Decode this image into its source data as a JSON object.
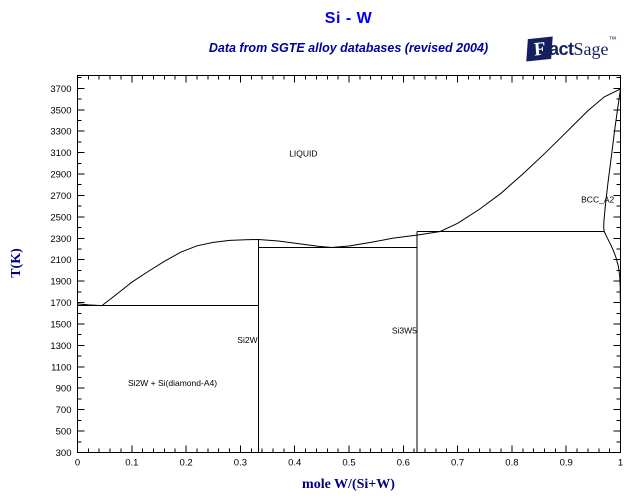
{
  "header": {
    "title": "Si - W",
    "subtitle": "Data from SGTE alloy databases (revised 2004)"
  },
  "logo": {
    "f": "F",
    "act": "act",
    "sage": "Sage",
    "tm": "™"
  },
  "colors": {
    "title": "#0000ee",
    "subtitle": "#000099",
    "axis_title": "#000080",
    "curves": "#000000",
    "logo": "#131f5e"
  },
  "chart_data": {
    "type": "line",
    "title": "Si - W",
    "subtitle": "Data from SGTE alloy databases (revised 2004)",
    "xlabel": "mole W/(Si+W)",
    "ylabel": "T(K)",
    "xlim": [
      0,
      1
    ],
    "ylim": [
      300,
      3820
    ],
    "grid": false,
    "x_major_ticks": [
      0,
      0.1,
      0.2,
      0.3,
      0.4,
      0.5,
      0.6,
      0.7,
      0.8,
      0.9,
      1
    ],
    "x_tick_labels": [
      "0",
      "0.1",
      "0.2",
      "0.3",
      "0.4",
      "0.5",
      "0.6",
      "0.7",
      "0.8",
      "0.9",
      "1"
    ],
    "x_minor_step": 0.02,
    "y_major_ticks": [
      300,
      500,
      700,
      900,
      1100,
      1300,
      1500,
      1700,
      1900,
      2100,
      2300,
      2500,
      2700,
      2900,
      3100,
      3300,
      3500,
      3700
    ],
    "y_minor_step": 100,
    "series": [
      {
        "name": "si-liquidus",
        "straight": false,
        "points": [
          [
            0,
            1687
          ],
          [
            0.02,
            1678
          ],
          [
            0.045,
            1672
          ],
          [
            0.07,
            1770
          ],
          [
            0.1,
            1890
          ],
          [
            0.13,
            1990
          ],
          [
            0.16,
            2085
          ],
          [
            0.19,
            2170
          ],
          [
            0.22,
            2230
          ],
          [
            0.25,
            2262
          ],
          [
            0.28,
            2280
          ],
          [
            0.31,
            2287
          ],
          [
            0.3333,
            2289
          ]
        ]
      },
      {
        "name": "liquidus-wsi2-to-w",
        "straight": false,
        "points": [
          [
            0.3333,
            2289
          ],
          [
            0.37,
            2275
          ],
          [
            0.41,
            2248
          ],
          [
            0.445,
            2224
          ],
          [
            0.468,
            2214
          ],
          [
            0.5,
            2228
          ],
          [
            0.54,
            2262
          ],
          [
            0.58,
            2300
          ],
          [
            0.625,
            2330
          ],
          [
            0.668,
            2363
          ],
          [
            0.7,
            2440
          ],
          [
            0.74,
            2570
          ],
          [
            0.78,
            2720
          ],
          [
            0.82,
            2900
          ],
          [
            0.86,
            3090
          ],
          [
            0.9,
            3290
          ],
          [
            0.94,
            3490
          ],
          [
            0.97,
            3620
          ],
          [
            1.0,
            3695
          ]
        ]
      },
      {
        "name": "bcc-solidus",
        "straight": false,
        "points": [
          [
            1.0,
            3695
          ],
          [
            0.995,
            3520
          ],
          [
            0.989,
            3300
          ],
          [
            0.983,
            3060
          ],
          [
            0.977,
            2820
          ],
          [
            0.972,
            2600
          ],
          [
            0.9695,
            2460
          ],
          [
            0.969,
            2400
          ],
          [
            0.97,
            2363
          ]
        ]
      },
      {
        "name": "bcc-solvus",
        "straight": false,
        "points": [
          [
            0.97,
            2363
          ],
          [
            0.975,
            2310
          ],
          [
            0.981,
            2250
          ],
          [
            0.987,
            2185
          ],
          [
            0.992,
            2115
          ],
          [
            0.996,
            2040
          ],
          [
            0.9985,
            1950
          ],
          [
            0.9995,
            1840
          ],
          [
            1.0,
            1650
          ]
        ]
      },
      {
        "name": "eutectic-si-si2w",
        "straight": true,
        "points": [
          [
            0,
            1672
          ],
          [
            0.3333,
            1672
          ]
        ]
      },
      {
        "name": "eutectic-si2w-si3w5",
        "straight": true,
        "points": [
          [
            0.3333,
            2214
          ],
          [
            0.625,
            2214
          ]
        ]
      },
      {
        "name": "peritectic-si3w5",
        "straight": true,
        "points": [
          [
            0.625,
            2363
          ],
          [
            0.97,
            2363
          ]
        ]
      },
      {
        "name": "si2w-stoichiometric-line",
        "straight": true,
        "points": [
          [
            0.3333,
            300
          ],
          [
            0.3333,
            2289
          ]
        ]
      },
      {
        "name": "si3w5-stoichiometric-line",
        "straight": true,
        "points": [
          [
            0.625,
            300
          ],
          [
            0.625,
            2363
          ]
        ]
      }
    ],
    "region_labels": [
      {
        "id": "liquid",
        "text": "LIQUID",
        "x": 0.416,
        "T": 3090
      },
      {
        "id": "bcc-a2",
        "text": "BCC_A2",
        "x": 0.958,
        "T": 2660
      },
      {
        "id": "si2w",
        "text": "Si2W",
        "x": 0.313,
        "T": 1350
      },
      {
        "id": "si3w5",
        "text": "Si3W5",
        "x": 0.602,
        "T": 1440
      },
      {
        "id": "si2w-plus-si",
        "text": "Si2W + Si(diamond-A4)",
        "x": 0.175,
        "T": 950
      }
    ]
  }
}
